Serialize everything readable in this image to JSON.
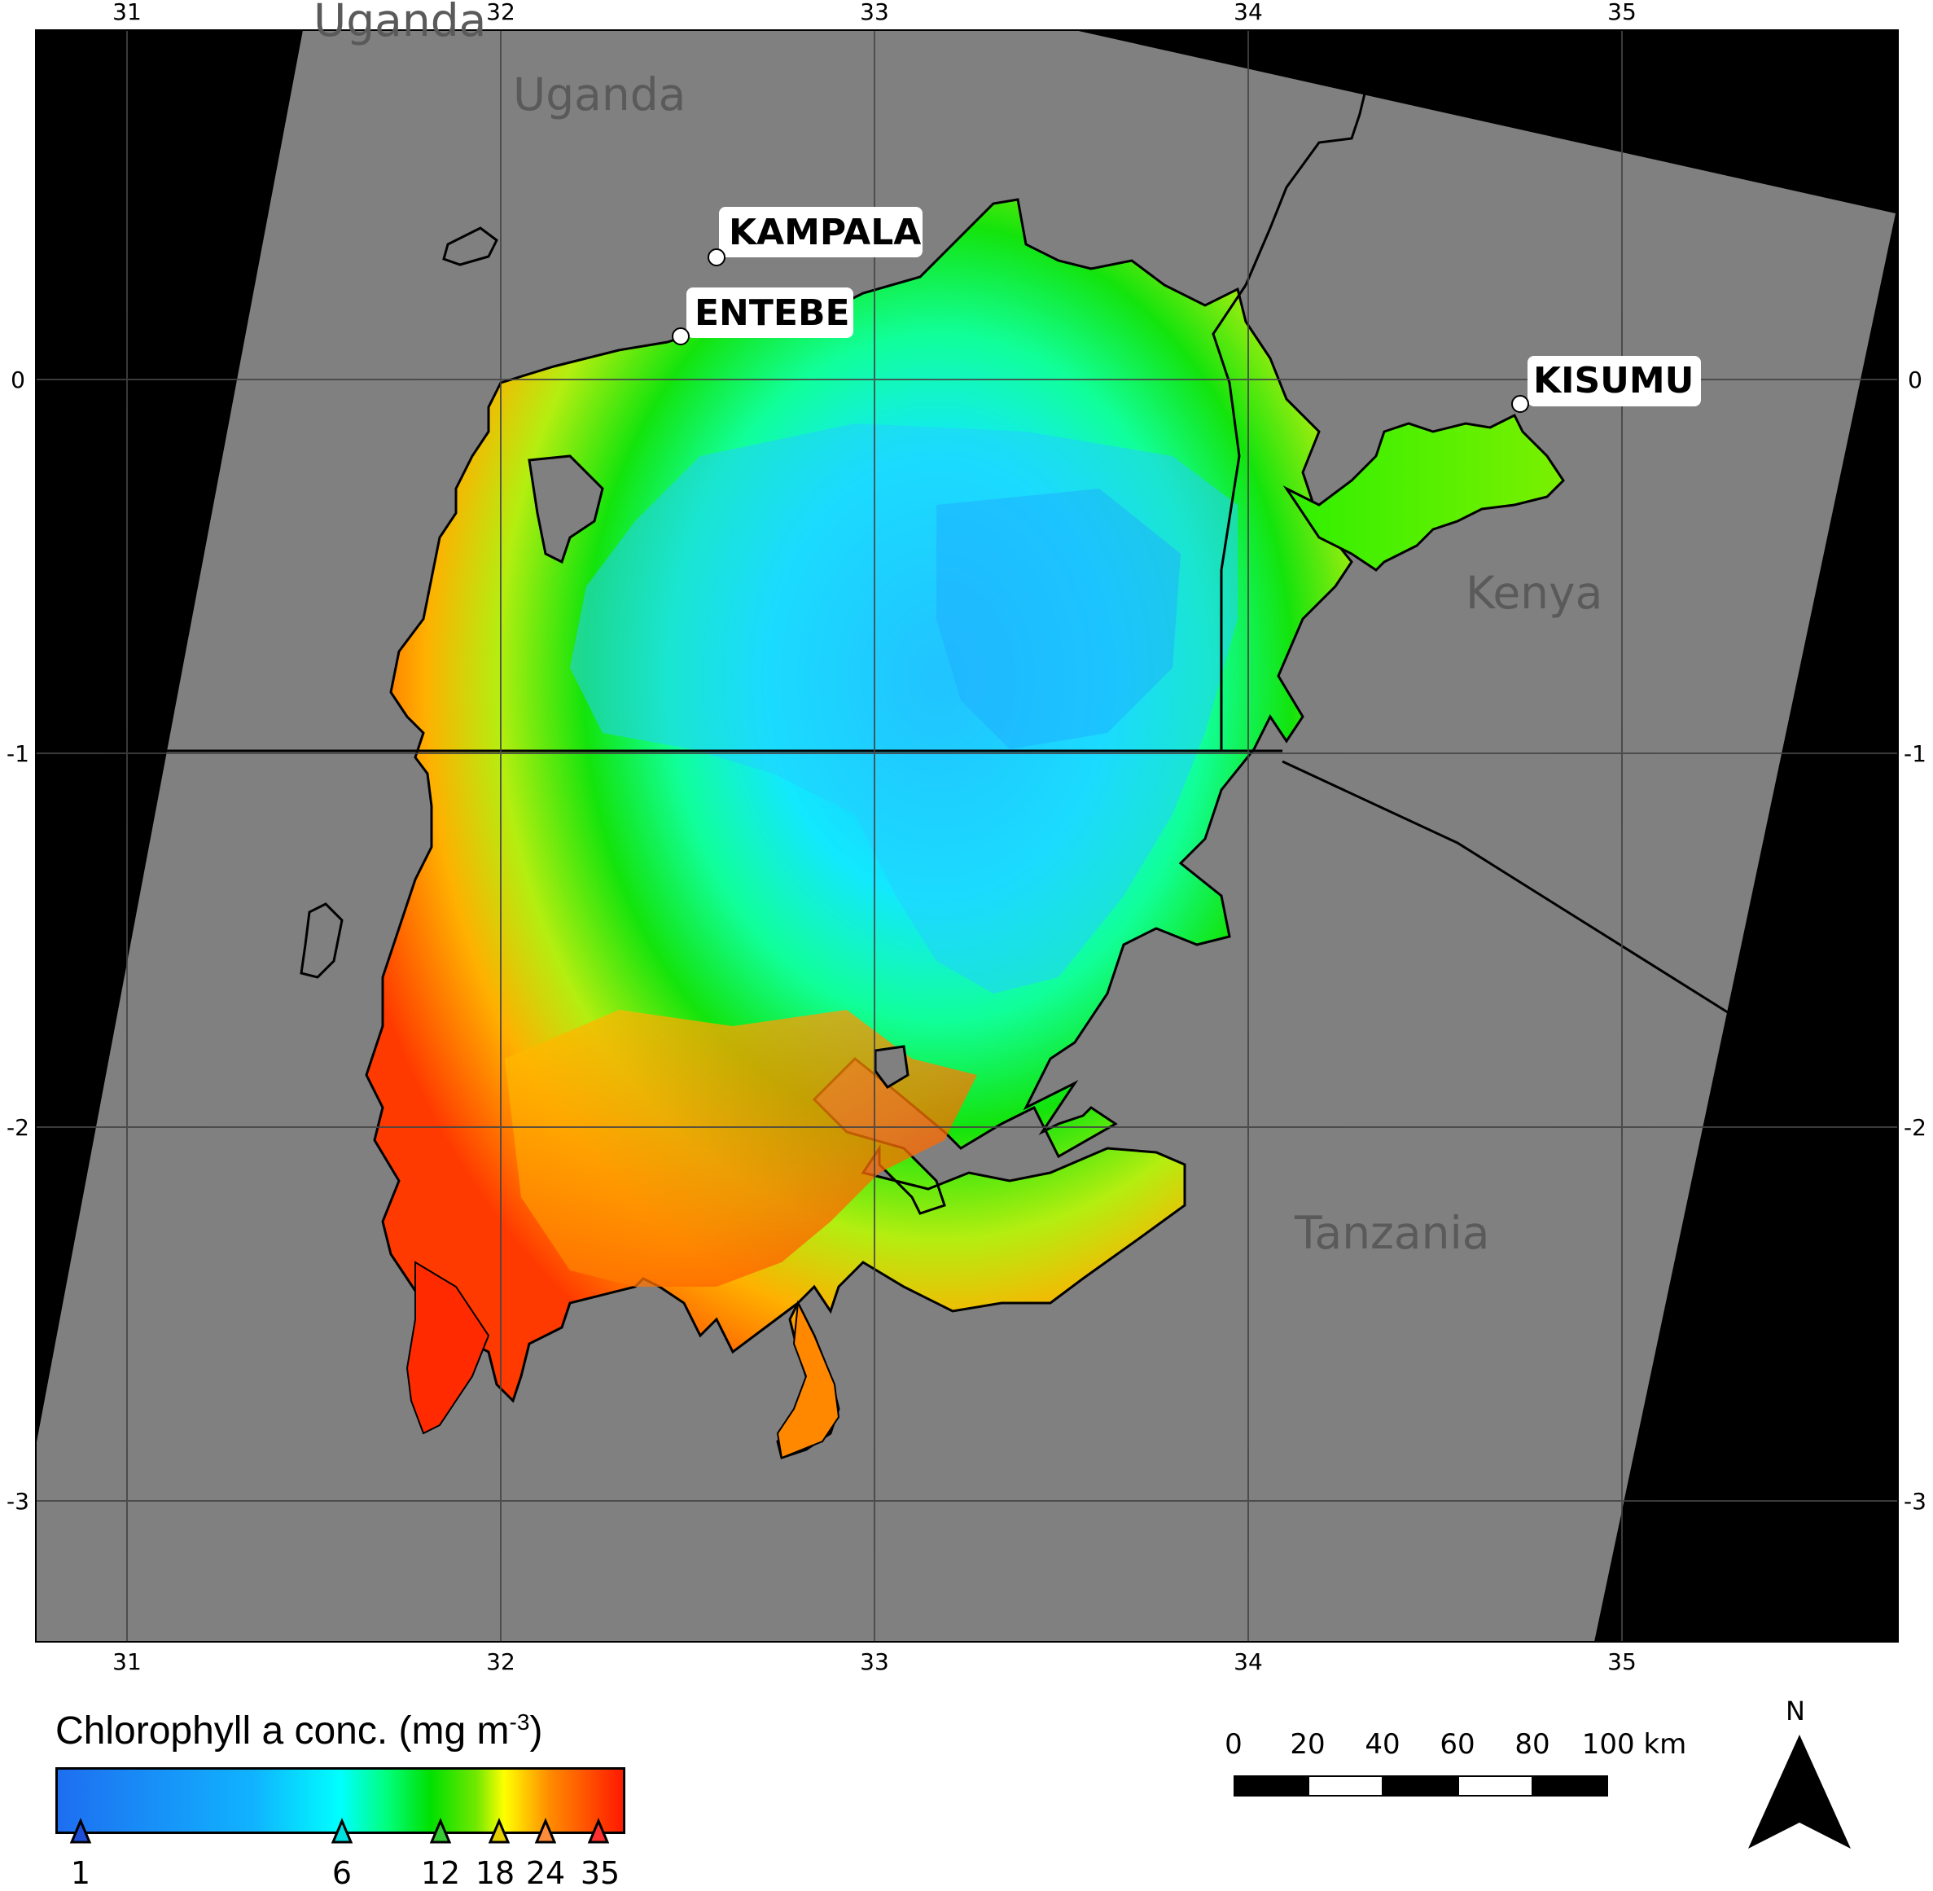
{
  "map": {
    "top_lon_ticks": [
      "31",
      "32",
      "33",
      "34",
      "35"
    ],
    "bottom_lon_ticks": [
      "31",
      "32",
      "33",
      "34",
      "35"
    ],
    "left_lat_ticks": [
      "0",
      "-1",
      "-2",
      "-3"
    ],
    "right_lat_ticks": [
      "0",
      "-1",
      "-2",
      "-3"
    ],
    "countries": {
      "uganda": "Uganda",
      "uganda_partial": "Uganda",
      "kenya": "Kenya",
      "tanzania": "Tanzania"
    },
    "cities": {
      "kampala": "KAMPALA",
      "entebe": "ENTEBE",
      "kisumu": "KISUMU"
    },
    "colors": {
      "background": "#000000",
      "land": "#808080",
      "low": "#1e6ef0",
      "mid": "#00ffff",
      "green": "#00e000",
      "yellow": "#ffff00",
      "orange": "#ff8c00",
      "high": "#ff1a00"
    }
  },
  "legend": {
    "title": "Chlorophyll a conc. (mg m",
    "title_sup": "-3",
    "title_end": ")",
    "ticks": [
      "1",
      "6",
      "12",
      "18",
      "24",
      "35"
    ],
    "marker_colors": [
      "#1f4fd8",
      "#00e0e0",
      "#33cc33",
      "#e8d000",
      "#ff8c3a",
      "#ff3030"
    ]
  },
  "scale_bar": {
    "labels": [
      "0",
      "20",
      "40",
      "60",
      "80",
      "100 km"
    ]
  },
  "north_arrow": {
    "label": "N"
  }
}
